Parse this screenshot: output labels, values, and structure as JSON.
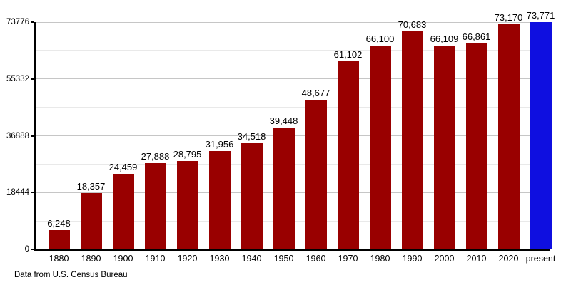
{
  "chart_data": {
    "type": "bar",
    "title": "",
    "categories": [
      "1880",
      "1890",
      "1900",
      "1910",
      "1920",
      "1930",
      "1940",
      "1950",
      "1960",
      "1970",
      "1980",
      "1990",
      "2000",
      "2010",
      "2020",
      "present"
    ],
    "values": [
      6248,
      18357,
      24459,
      27888,
      28795,
      31956,
      34518,
      39448,
      48677,
      61102,
      66100,
      70683,
      66109,
      66861,
      73170,
      73771
    ],
    "value_labels": [
      "6,248",
      "18,357",
      "24,459",
      "27,888",
      "28,795",
      "31,956",
      "34,518",
      "39,448",
      "48,677",
      "61,102",
      "66,100",
      "70,683",
      "66,109",
      "66,861",
      "73,170",
      "73,771"
    ],
    "highlight_category": "present",
    "xlabel": "",
    "ylabel": "",
    "ylim": [
      0,
      73776
    ],
    "y_axis": {
      "max": 73776,
      "major_ticks": [
        0,
        18444,
        36888,
        55332,
        73776
      ],
      "minor_gridlines": [
        9222,
        27666,
        46110,
        64554
      ]
    },
    "grid": "horizontal",
    "legend_position": "none",
    "colors": {
      "bar": "#990000",
      "highlight_bar": "#0f0fe0",
      "major_gridline": "#c6c6c6",
      "minor_gridline": "#e9e9e9",
      "axis": "#000000",
      "text": "#000000",
      "background": "#ffffff"
    }
  },
  "footer": {
    "source_note": "Data from U.S. Census Bureau"
  }
}
